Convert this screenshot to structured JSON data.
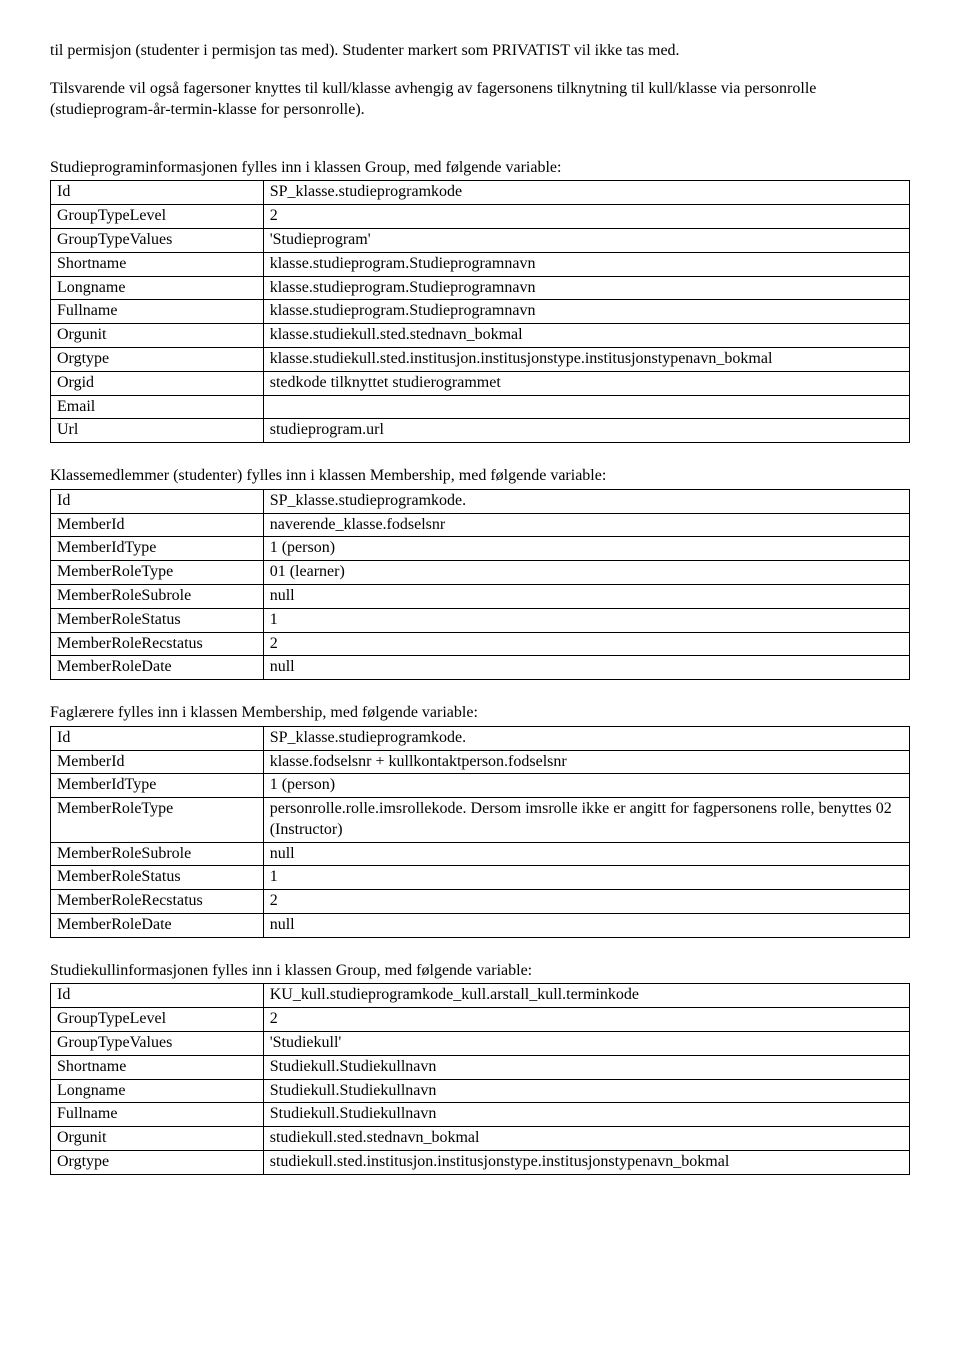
{
  "intro": {
    "p1": "til permisjon (studenter i permisjon tas med). Studenter markert som PRIVATIST vil ikke tas med.",
    "p2": "Tilsvarende vil også fagersoner knyttes til kull/klasse avhengig av fagersonens tilknytning til kull/klasse via personrolle (studieprogram-år-termin-klasse for personrolle)."
  },
  "section1": {
    "title": "Studieprograminformasjonen fylles inn i klassen Group, med følgende variable:",
    "rows": [
      [
        "Id",
        "SP_klasse.studieprogramkode"
      ],
      [
        "GroupTypeLevel",
        "2"
      ],
      [
        "GroupTypeValues",
        "'Studieprogram'"
      ],
      [
        "Shortname",
        "klasse.studieprogram.Studieprogramnavn"
      ],
      [
        "Longname",
        "klasse.studieprogram.Studieprogramnavn"
      ],
      [
        "Fullname",
        "klasse.studieprogram.Studieprogramnavn"
      ],
      [
        "Orgunit",
        "klasse.studiekull.sted.stednavn_bokmal"
      ],
      [
        "Orgtype",
        "klasse.studiekull.sted.institusjon.institusjonstype.institusjonstypenavn_bokmal"
      ],
      [
        "Orgid",
        "stedkode tilknyttet studierogrammet"
      ],
      [
        "Email",
        ""
      ],
      [
        "Url",
        "studieprogram.url"
      ]
    ]
  },
  "section2": {
    "title": "Klassemedlemmer (studenter) fylles inn i klassen Membership, med følgende variable:",
    "rows": [
      [
        "Id",
        "SP_klasse.studieprogramkode."
      ],
      [
        "MemberId",
        "naverende_klasse.fodselsnr"
      ],
      [
        "MemberIdType",
        "1 (person)"
      ],
      [
        "MemberRoleType",
        "01 (learner)"
      ],
      [
        "MemberRoleSubrole",
        "null"
      ],
      [
        "MemberRoleStatus",
        "1"
      ],
      [
        "MemberRoleRecstatus",
        "2"
      ],
      [
        "MemberRoleDate",
        "null"
      ]
    ]
  },
  "section3": {
    "title": "Faglærere fylles inn i klassen Membership, med følgende variable:",
    "rows": [
      [
        "Id",
        "SP_klasse.studieprogramkode."
      ],
      [
        "MemberId",
        "klasse.fodselsnr + kullkontaktperson.fodselsnr"
      ],
      [
        "MemberIdType",
        "1 (person)"
      ],
      [
        "MemberRoleType",
        "personrolle.rolle.imsrollekode. Dersom imsrolle ikke er angitt for fagpersonens rolle, benyttes 02 (Instructor)"
      ],
      [
        "MemberRoleSubrole",
        "null"
      ],
      [
        "MemberRoleStatus",
        "1"
      ],
      [
        "MemberRoleRecstatus",
        "2"
      ],
      [
        "MemberRoleDate",
        "null"
      ]
    ]
  },
  "section4": {
    "title": "Studiekullinformasjonen fylles inn i klassen Group, med følgende variable:",
    "rows": [
      [
        "Id",
        "KU_kull.studieprogramkode_kull.arstall_kull.terminkode"
      ],
      [
        "GroupTypeLevel",
        "2"
      ],
      [
        "GroupTypeValues",
        "'Studiekull'"
      ],
      [
        "Shortname",
        "Studiekull.Studiekullnavn"
      ],
      [
        "Longname",
        "Studiekull.Studiekullnavn"
      ],
      [
        "Fullname",
        "Studiekull.Studiekullnavn"
      ],
      [
        "Orgunit",
        "studiekull.sted.stednavn_bokmal"
      ],
      [
        "Orgtype",
        "studiekull.sted.institusjon.institusjonstype.institusjonstypenavn_bokmal"
      ]
    ]
  }
}
